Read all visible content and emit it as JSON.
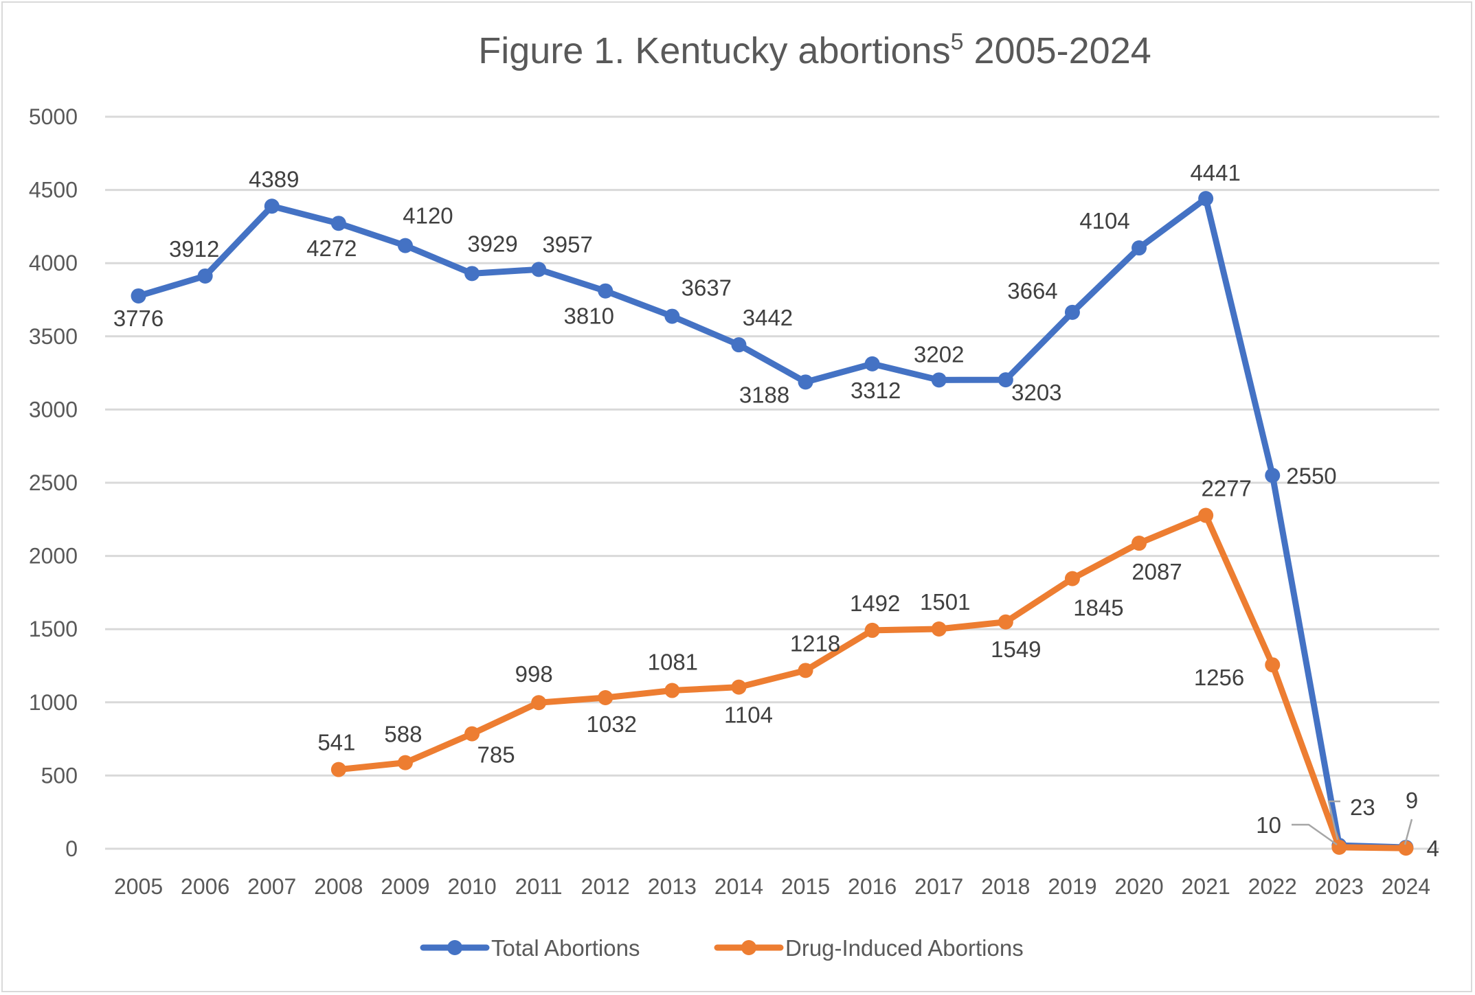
{
  "chart_data": {
    "type": "line",
    "title": "Figure 1. Kentucky abortions",
    "title_superscript": "5",
    "title_suffix": " 2005-2024",
    "xlabel": "",
    "ylabel": "",
    "ylim": [
      0,
      5000
    ],
    "yticks": [
      0,
      500,
      1000,
      1500,
      2000,
      2500,
      3000,
      3500,
      4000,
      4500,
      5000
    ],
    "grid": true,
    "legend_position": "bottom",
    "categories": [
      "2005",
      "2006",
      "2007",
      "2008",
      "2009",
      "2010",
      "2011",
      "2012",
      "2013",
      "2014",
      "2015",
      "2016",
      "2017",
      "2018",
      "2019",
      "2020",
      "2021",
      "2022",
      "2023",
      "2024"
    ],
    "series": [
      {
        "name": "Total Abortions",
        "color": "#4472c4",
        "values": [
          3776,
          3912,
          4389,
          4272,
          4120,
          3929,
          3957,
          3810,
          3637,
          3442,
          3188,
          3312,
          3202,
          3203,
          3664,
          4104,
          4441,
          2550,
          23,
          9
        ]
      },
      {
        "name": "Drug-Induced Abortions",
        "color": "#ed7d31",
        "values": [
          null,
          null,
          null,
          541,
          588,
          785,
          998,
          1032,
          1081,
          1104,
          1218,
          1492,
          1501,
          1549,
          1845,
          2087,
          2277,
          1256,
          10,
          4
        ]
      }
    ]
  }
}
